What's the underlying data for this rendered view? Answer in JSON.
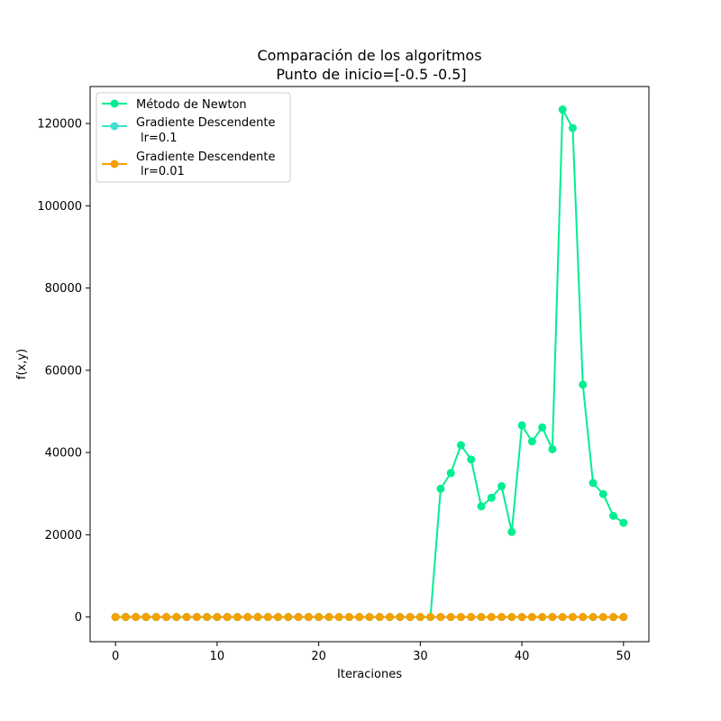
{
  "chart_data": {
    "type": "line",
    "title_lines": [
      "Comparación de los algoritmos",
      "Punto de inicio=[-0.5 -0.5]"
    ],
    "xlabel": "Iteraciones",
    "ylabel": "f(x,y)",
    "xlim": [
      -2.5,
      52.5
    ],
    "ylim": [
      -6000,
      129000
    ],
    "x_ticks": [
      0,
      10,
      20,
      30,
      40,
      50
    ],
    "y_ticks": [
      0,
      20000,
      40000,
      60000,
      80000,
      100000,
      120000
    ],
    "grid": false,
    "legend_position": "top-left",
    "x": [
      0,
      1,
      2,
      3,
      4,
      5,
      6,
      7,
      8,
      9,
      10,
      11,
      12,
      13,
      14,
      15,
      16,
      17,
      18,
      19,
      20,
      21,
      22,
      23,
      24,
      25,
      26,
      27,
      28,
      29,
      30,
      31,
      32,
      33,
      34,
      35,
      36,
      37,
      38,
      39,
      40,
      41,
      42,
      43,
      44,
      45,
      46,
      47,
      48,
      49,
      50
    ],
    "series": [
      {
        "name_lines": [
          "Método de Newton"
        ],
        "color": "#00ee90",
        "values": [
          0,
          0,
          0,
          0,
          0,
          0,
          0,
          0,
          0,
          0,
          0,
          0,
          0,
          0,
          0,
          0,
          0,
          0,
          0,
          0,
          0,
          0,
          0,
          0,
          0,
          0,
          0,
          0,
          0,
          0,
          0,
          0,
          31200,
          35000,
          41800,
          38300,
          26900,
          29000,
          31800,
          20700,
          46600,
          42700,
          46100,
          40800,
          123400,
          118900,
          56500,
          32600,
          29900,
          24600,
          22900
        ]
      },
      {
        "name_lines": [
          "Gradiente Descendente",
          "lr=0.1"
        ],
        "color": "#40e0d0",
        "values": [
          0,
          0,
          0,
          0,
          0,
          0,
          0,
          0,
          0,
          0,
          0,
          0,
          0,
          0,
          0,
          0,
          0,
          0,
          0,
          0,
          0,
          0,
          0,
          0,
          0,
          0,
          0,
          0,
          0,
          0,
          0,
          0,
          0,
          0,
          0,
          0,
          0,
          0,
          0,
          0,
          0,
          0,
          0,
          0,
          0,
          0,
          0,
          0,
          0,
          0,
          0
        ]
      },
      {
        "name_lines": [
          "Gradiente Descendente",
          "lr=0.01"
        ],
        "color": "#f5a000",
        "values": [
          0,
          0,
          0,
          0,
          0,
          0,
          0,
          0,
          0,
          0,
          0,
          0,
          0,
          0,
          0,
          0,
          0,
          0,
          0,
          0,
          0,
          0,
          0,
          0,
          0,
          0,
          0,
          0,
          0,
          0,
          0,
          0,
          0,
          0,
          0,
          0,
          0,
          0,
          0,
          0,
          0,
          0,
          0,
          0,
          0,
          0,
          0,
          0,
          0,
          0,
          0
        ]
      }
    ]
  }
}
